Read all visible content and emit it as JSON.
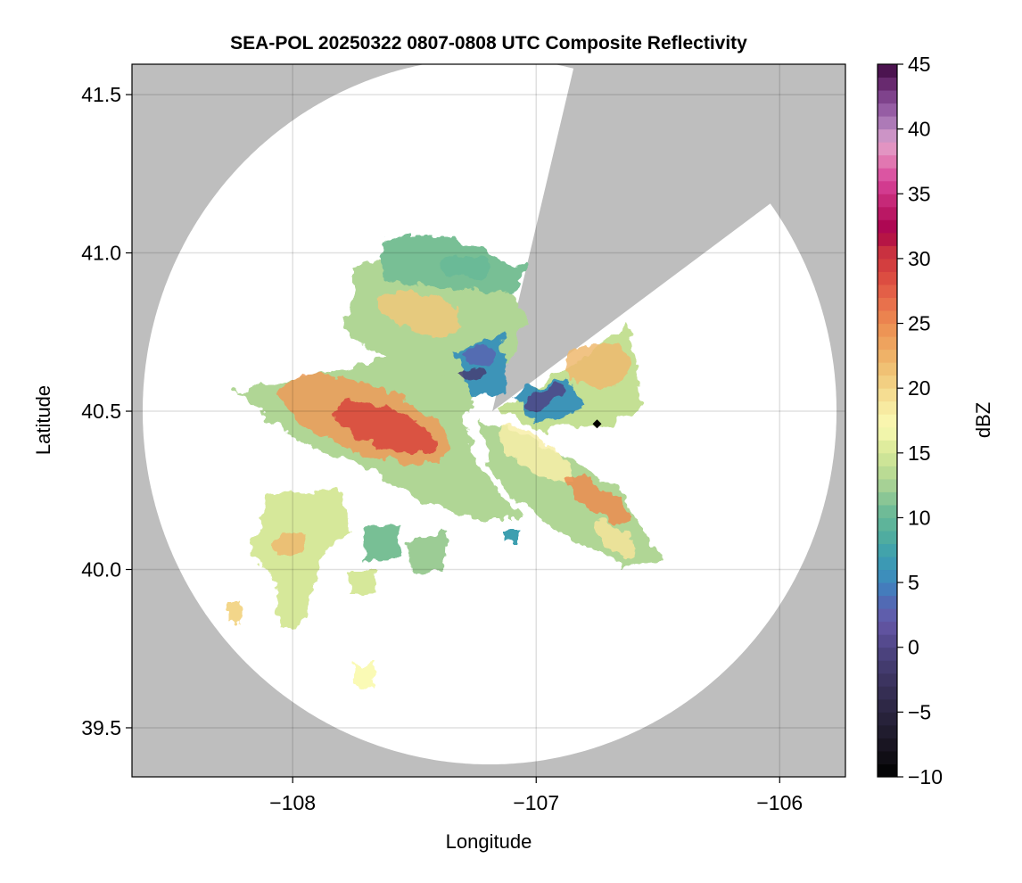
{
  "chart_data": {
    "type": "heatmap",
    "title": "SEA-POL 20250322 0807-0808 UTC Composite Reflectivity",
    "xlabel": "Longitude",
    "ylabel": "Latitude",
    "xlim": [
      -108.66,
      -105.73
    ],
    "ylim": [
      39.345,
      41.596
    ],
    "xticks": [
      -108,
      -107,
      -106
    ],
    "xtick_labels": [
      "−108",
      "−107",
      "−106"
    ],
    "yticks": [
      39.5,
      40.0,
      40.5,
      41.0,
      41.5
    ],
    "ytick_labels": [
      "39.5",
      "40.0",
      "40.5",
      "41.0",
      "41.5"
    ],
    "grid": true,
    "background_color": "#bebebe",
    "radar": {
      "center_lon": -107.18,
      "center_lat": 40.5,
      "blocked_sector_azimuth_deg": [
        14,
        54
      ]
    },
    "marker": {
      "lon": -106.75,
      "lat": 40.46,
      "shape": "diamond",
      "color": "#000000"
    },
    "colorbar": {
      "label": "dBZ",
      "range": [
        -10,
        45
      ],
      "ticks": [
        -10,
        -5,
        0,
        5,
        10,
        15,
        20,
        25,
        30,
        35,
        40,
        45
      ],
      "tick_labels": [
        "−10",
        "−5",
        "0",
        "5",
        "10",
        "15",
        "20",
        "25",
        "30",
        "35",
        "40",
        "45"
      ],
      "band_width_dbz": 1,
      "stops": [
        [
          -10,
          "#000000"
        ],
        [
          -8,
          "#15121c"
        ],
        [
          -5,
          "#2a2540"
        ],
        [
          -2,
          "#3f3766"
        ],
        [
          0,
          "#4f4585"
        ],
        [
          2,
          "#6658a8"
        ],
        [
          4,
          "#4a70b8"
        ],
        [
          5,
          "#3d88bf"
        ],
        [
          7,
          "#3c9fb0"
        ],
        [
          9,
          "#55b09b"
        ],
        [
          11,
          "#78bf95"
        ],
        [
          12,
          "#9ccc95"
        ],
        [
          14,
          "#c4e094"
        ],
        [
          16,
          "#e8f0a0"
        ],
        [
          17,
          "#fafab5"
        ],
        [
          19,
          "#f6e49a"
        ],
        [
          21,
          "#f0c87a"
        ],
        [
          23,
          "#eeaa62"
        ],
        [
          25,
          "#ec8c50"
        ],
        [
          27,
          "#e6684a"
        ],
        [
          29,
          "#d8443e"
        ],
        [
          31,
          "#c42a40"
        ],
        [
          32,
          "#a8004a"
        ],
        [
          34,
          "#c0206c"
        ],
        [
          36,
          "#d8449a"
        ],
        [
          38,
          "#e488b8"
        ],
        [
          39,
          "#e0a0cc"
        ],
        [
          40,
          "#b888c0"
        ],
        [
          42,
          "#8a4f9a"
        ],
        [
          44,
          "#5c1d60"
        ],
        [
          45,
          "#3c0a40"
        ]
      ]
    }
  }
}
